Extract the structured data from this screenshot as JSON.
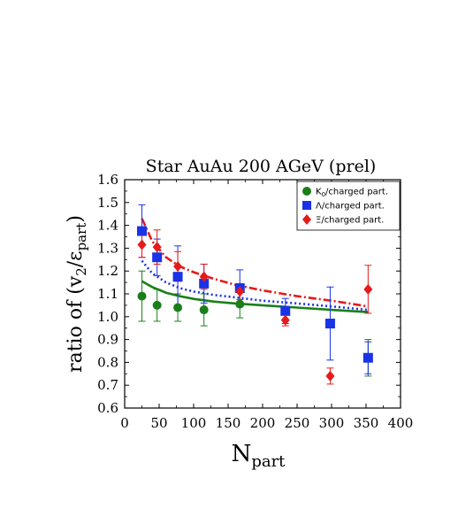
{
  "chart_data": {
    "type": "scatter",
    "title": "Star AuAu 200 AGeV (prel)",
    "xlabel": "N",
    "xlabel_sub": "part",
    "ylabel_prefix": "ratio of (v",
    "ylabel_v_sub": "2",
    "ylabel_slash": "/ε",
    "ylabel_eps_sub": "part",
    "ylabel_suffix": ")",
    "xlim": [
      0,
      400
    ],
    "ylim": [
      0.6,
      1.6
    ],
    "x_ticks": [
      0,
      50,
      100,
      150,
      200,
      250,
      300,
      350,
      400
    ],
    "y_ticks": [
      0.6,
      0.7,
      0.8,
      0.9,
      1.0,
      1.1,
      1.2,
      1.3,
      1.4,
      1.5,
      1.6
    ],
    "x_tick_labels": [
      "0",
      "50",
      "100",
      "150",
      "200",
      "250",
      "300",
      "350",
      "400"
    ],
    "y_tick_labels": [
      "0.6",
      "0.7",
      "0.8",
      "0.9",
      "1.0",
      "1.1",
      "1.2",
      "1.3",
      "1.4",
      "1.5",
      "1.6"
    ],
    "grid": false,
    "legend_position": "top-right",
    "series": [
      {
        "name": "K",
        "name_sub": "0",
        "name_suffix": "/charged part.",
        "color": "#1a7f1a",
        "marker": "circle",
        "points": [
          {
            "x": 25,
            "y": 1.09,
            "err": 0.11
          },
          {
            "x": 47,
            "y": 1.05,
            "err": 0.07
          },
          {
            "x": 77,
            "y": 1.04,
            "err": 0.06
          },
          {
            "x": 115,
            "y": 1.03,
            "err": 0.07
          },
          {
            "x": 167,
            "y": 1.055,
            "err": 0.06
          },
          {
            "x": 353,
            "y": 0.82,
            "err": 0.08
          }
        ],
        "curve": {
          "style": "solid",
          "x": [
            25,
            40,
            60,
            80,
            100,
            130,
            160,
            200,
            250,
            300,
            353
          ],
          "y": [
            1.155,
            1.13,
            1.105,
            1.09,
            1.078,
            1.066,
            1.058,
            1.05,
            1.04,
            1.03,
            1.02
          ]
        }
      },
      {
        "name": "Λ/charged part.",
        "color": "#1a33e6",
        "marker": "square",
        "points": [
          {
            "x": 25,
            "y": 1.375,
            "err": 0.115
          },
          {
            "x": 47,
            "y": 1.26,
            "err": 0.08
          },
          {
            "x": 77,
            "y": 1.175,
            "err": 0.135
          },
          {
            "x": 115,
            "y": 1.145,
            "err": 0.085
          },
          {
            "x": 167,
            "y": 1.125,
            "err": 0.08
          },
          {
            "x": 233,
            "y": 1.025,
            "err": 0.055
          },
          {
            "x": 298,
            "y": 0.97,
            "err": 0.16
          },
          {
            "x": 353,
            "y": 0.82,
            "err": 0.07
          }
        ],
        "curve": {
          "style": "dotted",
          "x": [
            25,
            40,
            60,
            80,
            100,
            130,
            160,
            200,
            250,
            300,
            353
          ],
          "y": [
            1.245,
            1.19,
            1.15,
            1.125,
            1.11,
            1.095,
            1.085,
            1.07,
            1.058,
            1.045,
            1.03
          ]
        }
      },
      {
        "name": "Ξ/charged part.",
        "color": "#e61a1a",
        "marker": "diamond",
        "points": [
          {
            "x": 25,
            "y": 1.315,
            "err": 0.055
          },
          {
            "x": 47,
            "y": 1.305,
            "err": 0.075
          },
          {
            "x": 77,
            "y": 1.22,
            "err": 0.065
          },
          {
            "x": 115,
            "y": 1.175,
            "err": 0.055
          },
          {
            "x": 167,
            "y": 1.11,
            "err": 0.035
          },
          {
            "x": 233,
            "y": 0.985,
            "err": 0.025
          },
          {
            "x": 298,
            "y": 0.74,
            "err": 0.035
          },
          {
            "x": 353,
            "y": 1.12,
            "err": 0.105
          }
        ],
        "curve": {
          "style": "dashdot",
          "x": [
            25,
            40,
            60,
            80,
            100,
            130,
            160,
            200,
            250,
            300,
            353
          ],
          "y": [
            1.43,
            1.33,
            1.26,
            1.22,
            1.195,
            1.165,
            1.14,
            1.115,
            1.09,
            1.07,
            1.045
          ]
        }
      }
    ]
  }
}
